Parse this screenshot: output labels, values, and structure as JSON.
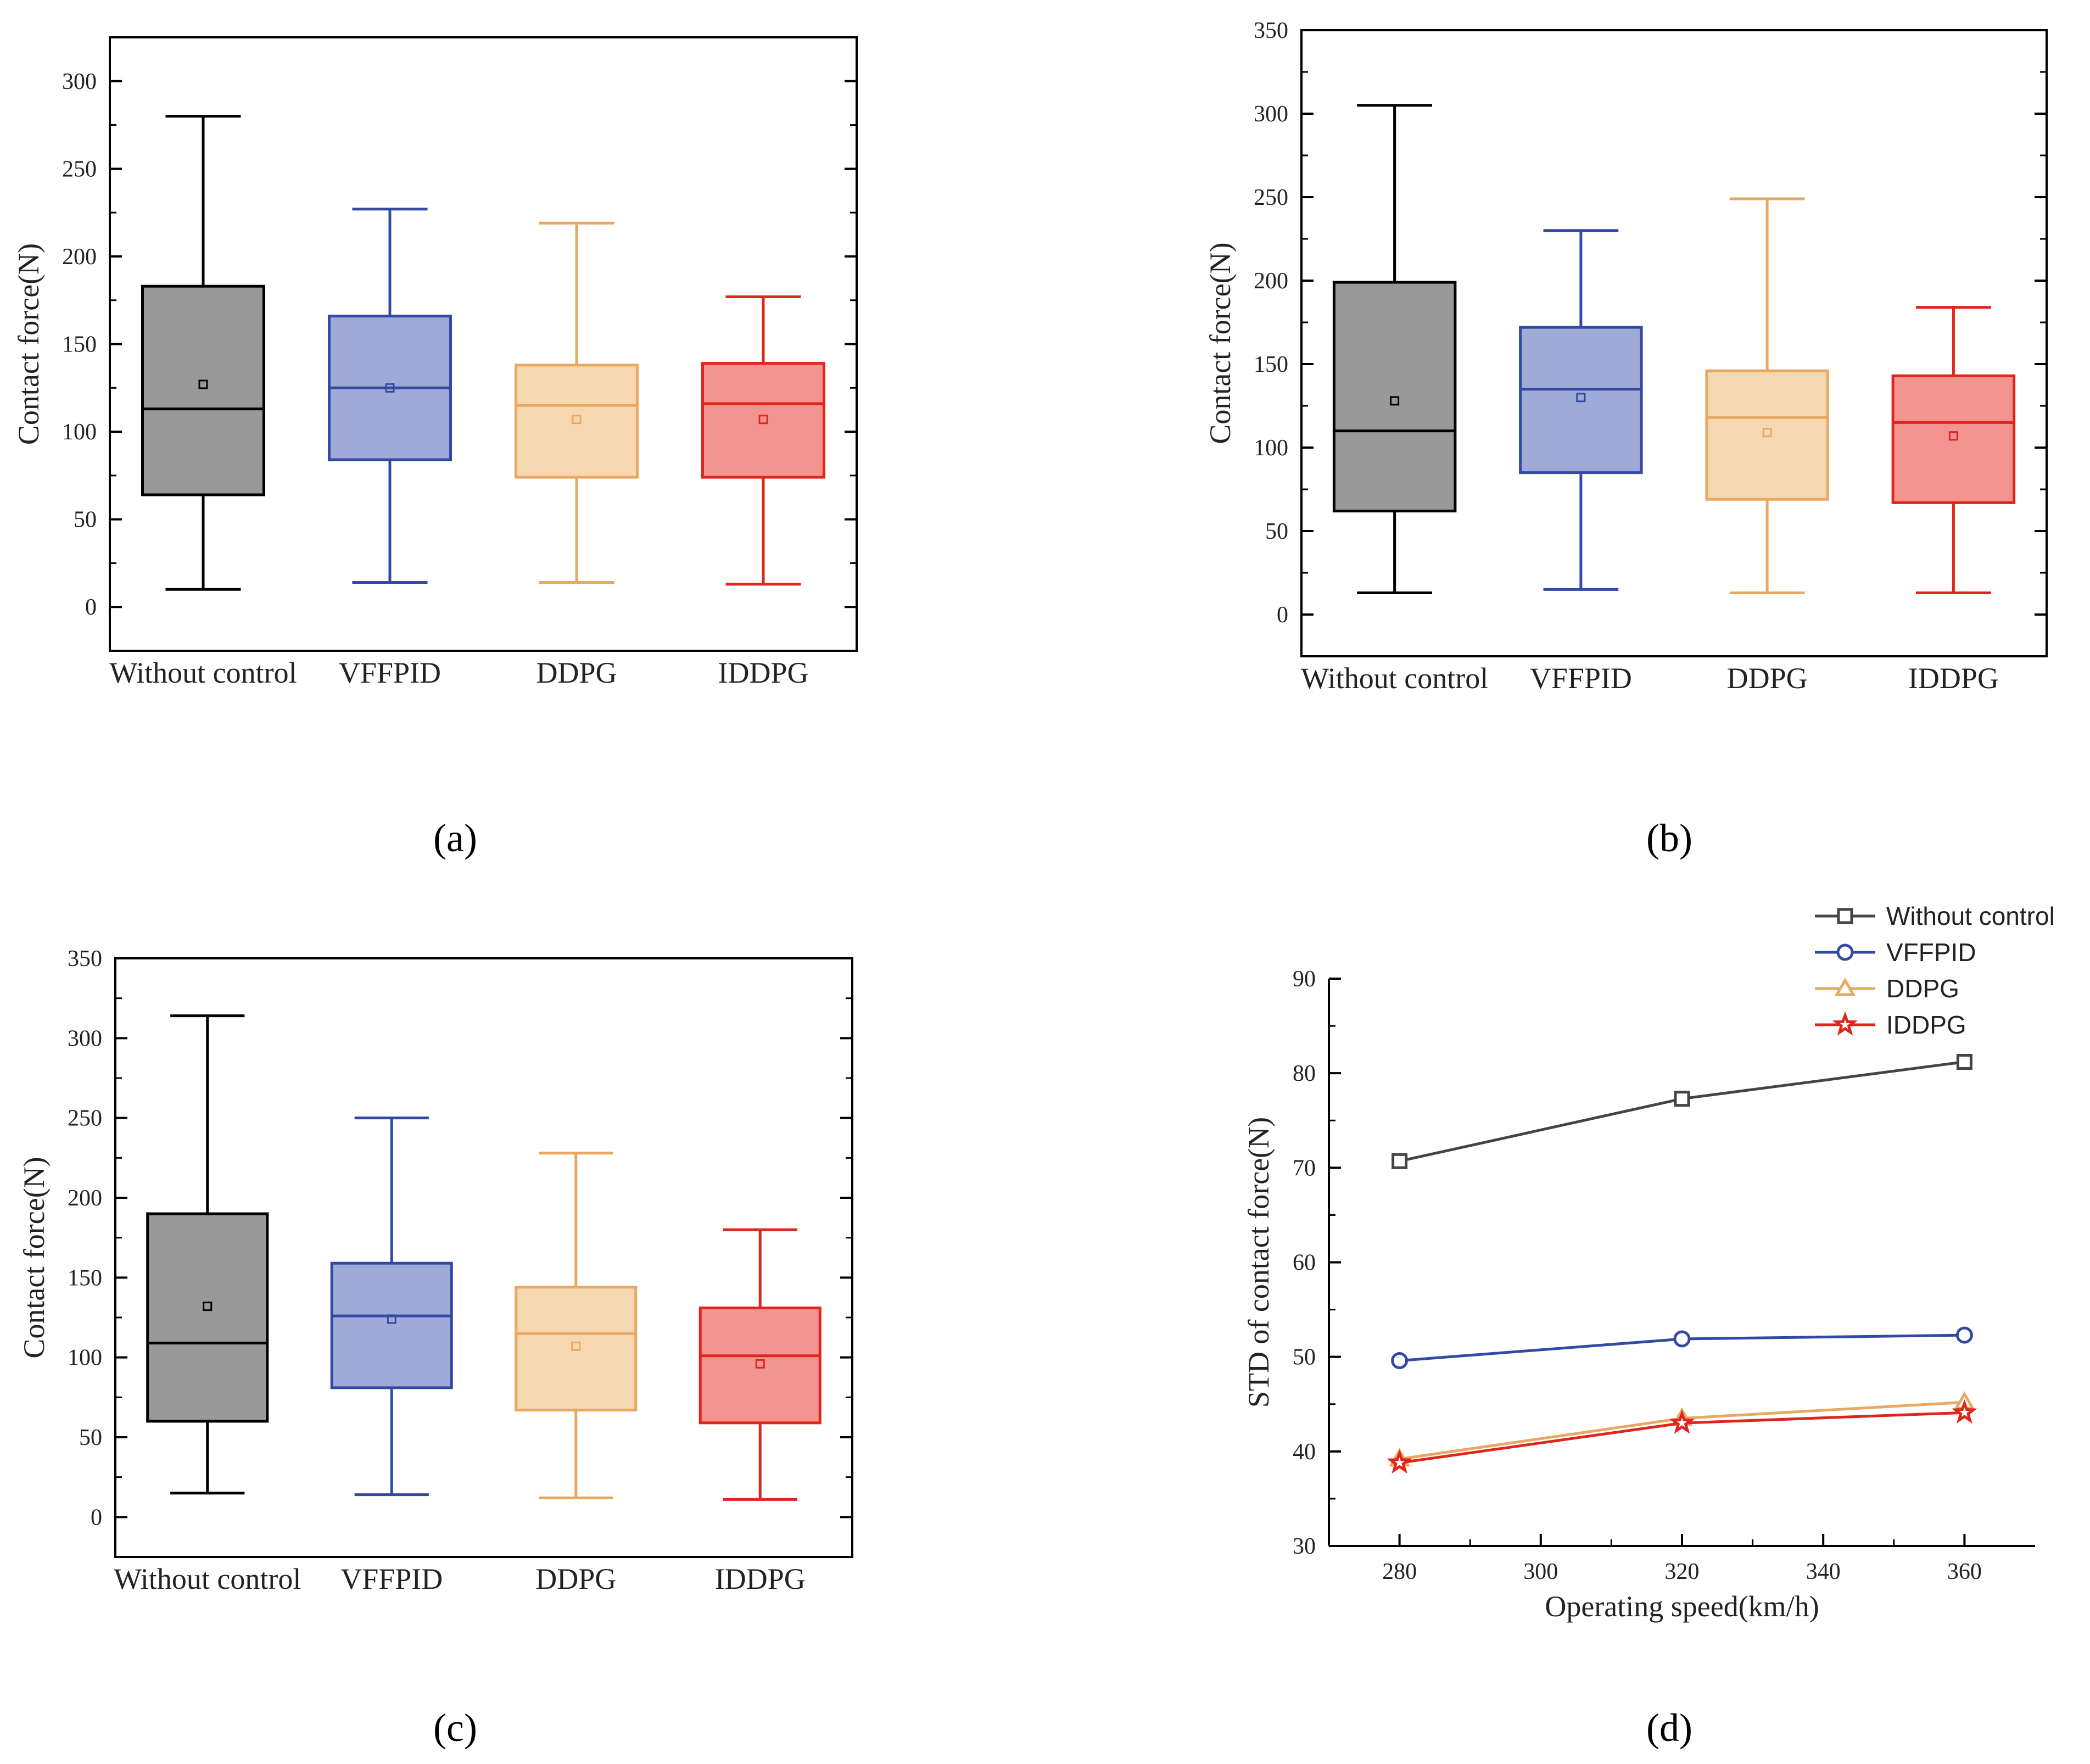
{
  "figure": {
    "captions": [
      "(a)",
      "(b)",
      "(c)",
      "(d)"
    ]
  },
  "colors": {
    "without_control": {
      "stroke": "#000000",
      "fill": "#999999"
    },
    "vffpid": {
      "stroke": "#3349a3",
      "fill": "#9fabd6"
    },
    "ddpg": {
      "stroke": "#e8a862",
      "fill": "#f5d8b0"
    },
    "iddpg": {
      "stroke": "#e0251d",
      "fill": "#f39490"
    },
    "line_without_control": "#444444"
  },
  "chart_data": [
    {
      "id": "a",
      "type": "box",
      "ylabel": "Contact force(N)",
      "ylim": [
        -25,
        325
      ],
      "yticks": [
        0,
        50,
        100,
        150,
        200,
        250,
        300
      ],
      "categories": [
        "Without control",
        "VFFPID",
        "DDPG",
        "IDDPG"
      ],
      "boxes": [
        {
          "name": "Without control",
          "min": 10,
          "q1": 64,
          "median": 113,
          "q3": 183,
          "max": 280,
          "mean": 127
        },
        {
          "name": "VFFPID",
          "min": 14,
          "q1": 84,
          "median": 125,
          "q3": 166,
          "max": 227,
          "mean": 125
        },
        {
          "name": "DDPG",
          "min": 14,
          "q1": 74,
          "median": 115,
          "q3": 138,
          "max": 219,
          "mean": 107
        },
        {
          "name": "IDDPG",
          "min": 13,
          "q1": 74,
          "median": 116,
          "q3": 139,
          "max": 177,
          "mean": 107
        }
      ]
    },
    {
      "id": "b",
      "type": "box",
      "ylabel": "Contact force(N)",
      "ylim": [
        -25,
        350
      ],
      "yticks": [
        0,
        50,
        100,
        150,
        200,
        250,
        300,
        350
      ],
      "categories": [
        "Without control",
        "VFFPID",
        "DDPG",
        "IDDPG"
      ],
      "boxes": [
        {
          "name": "Without control",
          "min": 13,
          "q1": 62,
          "median": 110,
          "q3": 199,
          "max": 305,
          "mean": 128
        },
        {
          "name": "VFFPID",
          "min": 15,
          "q1": 85,
          "median": 135,
          "q3": 172,
          "max": 230,
          "mean": 130
        },
        {
          "name": "DDPG",
          "min": 13,
          "q1": 69,
          "median": 118,
          "q3": 146,
          "max": 249,
          "mean": 109
        },
        {
          "name": "IDDPG",
          "min": 13,
          "q1": 67,
          "median": 115,
          "q3": 143,
          "max": 184,
          "mean": 107
        }
      ]
    },
    {
      "id": "c",
      "type": "box",
      "ylabel": "Contact force(N)",
      "ylim": [
        -25,
        350
      ],
      "yticks": [
        0,
        50,
        100,
        150,
        200,
        250,
        300,
        350
      ],
      "categories": [
        "Without control",
        "VFFPID",
        "DDPG",
        "IDDPG"
      ],
      "boxes": [
        {
          "name": "Without control",
          "min": 15,
          "q1": 60,
          "median": 109,
          "q3": 190,
          "max": 314,
          "mean": 132
        },
        {
          "name": "VFFPID",
          "min": 14,
          "q1": 81,
          "median": 126,
          "q3": 159,
          "max": 250,
          "mean": 124
        },
        {
          "name": "DDPG",
          "min": 12,
          "q1": 67,
          "median": 115,
          "q3": 144,
          "max": 228,
          "mean": 107
        },
        {
          "name": "IDDPG",
          "min": 11,
          "q1": 59,
          "median": 101,
          "q3": 131,
          "max": 180,
          "mean": 96
        }
      ]
    },
    {
      "id": "d",
      "type": "line",
      "xlabel": "Operating speed(km/h)",
      "ylabel": "STD of contact force(N)",
      "xlim": [
        270,
        370
      ],
      "ylim": [
        30,
        90
      ],
      "xticks": [
        280,
        300,
        320,
        340,
        360
      ],
      "yticks": [
        30,
        40,
        50,
        60,
        70,
        80,
        90
      ],
      "x": [
        280,
        320,
        360
      ],
      "series": [
        {
          "name": "Without control",
          "marker": "square",
          "values": [
            70.7,
            77.3,
            81.2
          ]
        },
        {
          "name": "VFFPID",
          "marker": "circle",
          "values": [
            49.6,
            51.9,
            52.3
          ]
        },
        {
          "name": "DDPG",
          "marker": "triangle",
          "values": [
            39.2,
            43.5,
            45.2
          ]
        },
        {
          "name": "IDDPG",
          "marker": "star",
          "values": [
            38.8,
            43.0,
            44.1
          ]
        }
      ]
    }
  ]
}
